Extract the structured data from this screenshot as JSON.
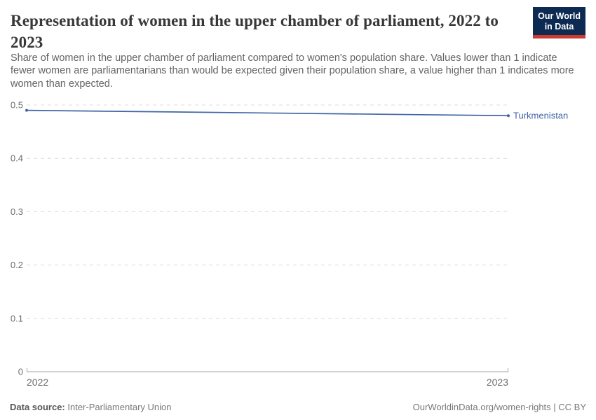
{
  "header": {
    "title": "Representation of women in the upper chamber of parliament, 2022 to 2023",
    "subtitle": "Share of women in the upper chamber of parliament compared to women's population share. Values lower than 1 indicate fewer women are parliamentarians than would be expected given their population share, a value higher than 1 indicates more women than expected.",
    "logo": {
      "line1": "Our World",
      "line2": "in Data"
    }
  },
  "chart_data": {
    "type": "line",
    "title": "Representation of women in the upper chamber of parliament, 2022 to 2023",
    "x": [
      2022,
      2023
    ],
    "xticks": [
      2022,
      2023
    ],
    "series": [
      {
        "name": "Turkmenistan",
        "values": [
          0.49,
          0.48
        ],
        "color": "#4165a3"
      }
    ],
    "xlabel": "",
    "ylabel": "",
    "ylim": [
      0,
      0.5
    ],
    "yticks": [
      0,
      0.1,
      0.2,
      0.3,
      0.4,
      0.5
    ],
    "grid": "horizontal-dashed",
    "legend": "end-of-line-label"
  },
  "footer": {
    "source_label": "Data source:",
    "source_value": "Inter-Parliamentary Union",
    "credit": "OurWorldinData.org/women-rights | CC BY"
  },
  "colors": {
    "line": "#4165a3",
    "gridline": "#dcdcdc",
    "axis": "#a3a3a3",
    "tick_text": "#6e6e6e",
    "logo_navy": "#0d2a52",
    "logo_red": "#cc3c33"
  }
}
